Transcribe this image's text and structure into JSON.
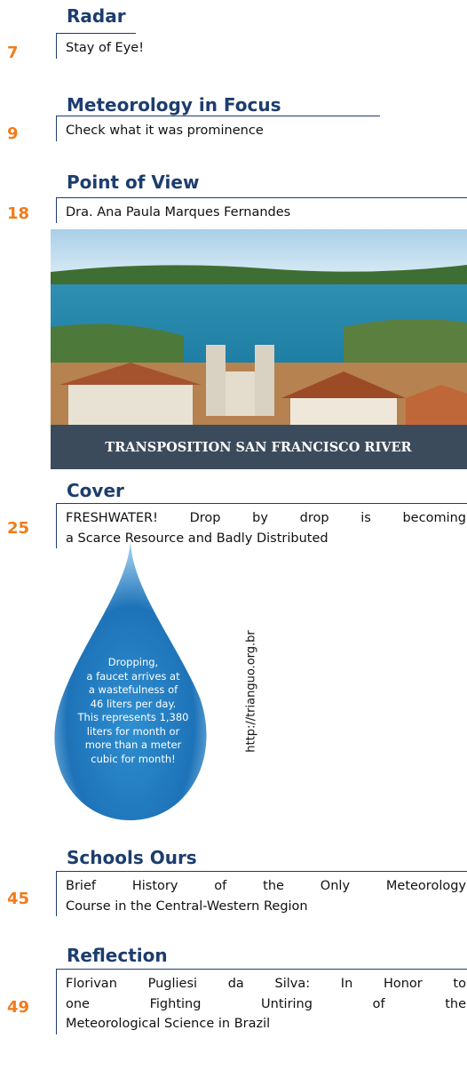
{
  "sections": [
    {
      "title": "Radar",
      "page": "7",
      "lines": [
        "Stay of Eye!"
      ]
    },
    {
      "title": "Meteorology in Focus",
      "page": "9",
      "lines": [
        "Check what it was prominence"
      ]
    },
    {
      "title": "Point of View",
      "page": "18",
      "lines": [
        "Dra. Ana Paula Marques Fernandes"
      ]
    },
    {
      "title": "Cover",
      "page": "25",
      "lines": [
        "FRESHWATER! Drop by drop is becoming",
        "a Scarce Resource and Badly Distributed"
      ]
    },
    {
      "title": "Schools Ours",
      "page": "45",
      "lines": [
        "Brief History of the Only Meteorology",
        "Course in the Central-Western Region"
      ]
    },
    {
      "title": "Reflection",
      "page": "49",
      "lines": [
        "Florivan Pugliesi da Silva: In Honor to",
        "one Fighting Untiring of the",
        "Meteorological Science in Brazil"
      ]
    }
  ],
  "photo": {
    "caption": "TRANSPOSITION SAN FRANCISCO RIVER"
  },
  "drop": {
    "lines": [
      "Dropping,",
      "a faucet arrives at",
      "a wastefulness of",
      "46 liters per day.",
      "This represents 1,380",
      "liters for month or",
      "more than a meter",
      "cubic for month!"
    ],
    "source": "http://trianguo.org.br"
  }
}
